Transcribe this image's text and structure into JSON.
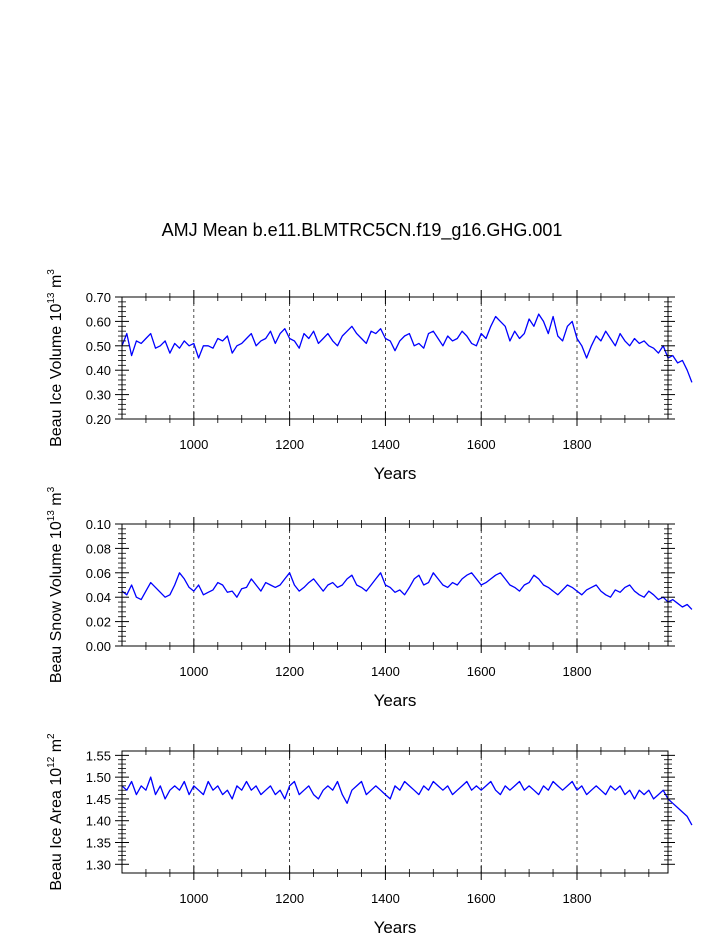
{
  "figure": {
    "title": "AMJ Mean b.e11.BLMTRC5CN.f19_g16.GHG.001"
  },
  "colors": {
    "series": "#0000ff",
    "axis": "#000000",
    "grid": "#000000"
  },
  "chart_data": [
    {
      "type": "line",
      "ylabel": "Beau Ice Volume 10",
      "ylabel_exp": "13",
      "ylabel_unit": " m",
      "ylabel_unit_exp": "3",
      "xlabel": "Years",
      "xlim": [
        850,
        1990
      ],
      "ylim": [
        0.2,
        0.7
      ],
      "xticks": [
        1000,
        1200,
        1400,
        1600,
        1800
      ],
      "xtick_labels": [
        "1000",
        "1200",
        "1400",
        "1600",
        "1800"
      ],
      "yticks": [
        0.2,
        0.3,
        0.4,
        0.5,
        0.6,
        0.7
      ],
      "ytick_labels": [
        "0.20",
        "0.30",
        "0.40",
        "0.50",
        "0.60",
        "0.70"
      ],
      "grid": "vertical dashed at labeled x ticks",
      "series": [
        {
          "x_start": 850,
          "x_step": 10,
          "values": [
            0.5,
            0.55,
            0.46,
            0.52,
            0.51,
            0.53,
            0.55,
            0.49,
            0.5,
            0.52,
            0.47,
            0.51,
            0.49,
            0.52,
            0.5,
            0.51,
            0.45,
            0.5,
            0.5,
            0.49,
            0.53,
            0.52,
            0.54,
            0.47,
            0.5,
            0.51,
            0.53,
            0.55,
            0.5,
            0.52,
            0.53,
            0.56,
            0.51,
            0.55,
            0.57,
            0.53,
            0.52,
            0.49,
            0.55,
            0.53,
            0.56,
            0.51,
            0.53,
            0.55,
            0.52,
            0.5,
            0.54,
            0.56,
            0.58,
            0.55,
            0.53,
            0.51,
            0.56,
            0.55,
            0.57,
            0.53,
            0.52,
            0.48,
            0.52,
            0.54,
            0.55,
            0.5,
            0.51,
            0.49,
            0.55,
            0.56,
            0.53,
            0.5,
            0.54,
            0.52,
            0.53,
            0.56,
            0.54,
            0.51,
            0.5,
            0.55,
            0.53,
            0.58,
            0.62,
            0.6,
            0.58,
            0.52,
            0.56,
            0.53,
            0.55,
            0.61,
            0.58,
            0.63,
            0.6,
            0.55,
            0.62,
            0.54,
            0.52,
            0.58,
            0.6,
            0.53,
            0.5,
            0.45,
            0.5,
            0.54,
            0.52,
            0.56,
            0.53,
            0.5,
            0.55,
            0.52,
            0.5,
            0.53,
            0.51,
            0.52,
            0.5,
            0.49,
            0.47,
            0.5,
            0.45,
            0.46,
            0.43,
            0.44,
            0.4,
            0.35
          ]
        }
      ]
    },
    {
      "type": "line",
      "ylabel": "Beau Snow Volume 10",
      "ylabel_exp": "13",
      "ylabel_unit": " m",
      "ylabel_unit_exp": "3",
      "xlabel": "Years",
      "xlim": [
        850,
        1990
      ],
      "ylim": [
        0,
        0.1
      ],
      "xticks": [
        1000,
        1200,
        1400,
        1600,
        1800
      ],
      "xtick_labels": [
        "1000",
        "1200",
        "1400",
        "1600",
        "1800"
      ],
      "yticks": [
        0,
        0.02,
        0.04,
        0.06,
        0.08,
        0.1
      ],
      "ytick_labels": [
        "0.00",
        "0.02",
        "0.04",
        "0.06",
        "0.08",
        "0.10"
      ],
      "grid": "vertical dashed at labeled x ticks",
      "series": [
        {
          "x_start": 850,
          "x_step": 10,
          "values": [
            0.045,
            0.042,
            0.05,
            0.04,
            0.038,
            0.045,
            0.052,
            0.048,
            0.044,
            0.04,
            0.042,
            0.05,
            0.06,
            0.055,
            0.048,
            0.045,
            0.05,
            0.042,
            0.044,
            0.046,
            0.052,
            0.05,
            0.044,
            0.045,
            0.04,
            0.047,
            0.048,
            0.055,
            0.05,
            0.045,
            0.052,
            0.05,
            0.048,
            0.05,
            0.055,
            0.06,
            0.05,
            0.045,
            0.048,
            0.052,
            0.055,
            0.05,
            0.045,
            0.05,
            0.052,
            0.048,
            0.05,
            0.055,
            0.058,
            0.05,
            0.048,
            0.045,
            0.05,
            0.055,
            0.06,
            0.05,
            0.048,
            0.044,
            0.046,
            0.042,
            0.048,
            0.055,
            0.058,
            0.05,
            0.052,
            0.06,
            0.055,
            0.05,
            0.048,
            0.052,
            0.05,
            0.055,
            0.058,
            0.06,
            0.055,
            0.05,
            0.052,
            0.055,
            0.058,
            0.06,
            0.055,
            0.05,
            0.048,
            0.045,
            0.05,
            0.052,
            0.058,
            0.055,
            0.05,
            0.048,
            0.045,
            0.042,
            0.046,
            0.05,
            0.048,
            0.045,
            0.042,
            0.046,
            0.048,
            0.05,
            0.045,
            0.042,
            0.04,
            0.046,
            0.044,
            0.048,
            0.05,
            0.045,
            0.042,
            0.04,
            0.045,
            0.042,
            0.038,
            0.04,
            0.036,
            0.038,
            0.035,
            0.032,
            0.034,
            0.03
          ]
        }
      ]
    },
    {
      "type": "line",
      "ylabel": "Beau Ice Area 10",
      "ylabel_exp": "12",
      "ylabel_unit": " m",
      "ylabel_unit_exp": "2",
      "xlabel": "Years",
      "xlim": [
        850,
        1990
      ],
      "ylim": [
        1.28,
        1.56
      ],
      "xticks": [
        1000,
        1200,
        1400,
        1600,
        1800
      ],
      "xtick_labels": [
        "1000",
        "1200",
        "1400",
        "1600",
        "1800"
      ],
      "yticks": [
        1.3,
        1.35,
        1.4,
        1.45,
        1.5,
        1.55
      ],
      "ytick_labels": [
        "1.30",
        "1.35",
        "1.40",
        "1.45",
        "1.50",
        "1.55"
      ],
      "grid": "vertical dashed at labeled x ticks",
      "series": [
        {
          "x_start": 850,
          "x_step": 10,
          "values": [
            1.48,
            1.47,
            1.49,
            1.46,
            1.48,
            1.47,
            1.5,
            1.46,
            1.48,
            1.45,
            1.47,
            1.48,
            1.47,
            1.49,
            1.46,
            1.48,
            1.47,
            1.46,
            1.49,
            1.47,
            1.48,
            1.46,
            1.47,
            1.45,
            1.48,
            1.47,
            1.49,
            1.47,
            1.48,
            1.46,
            1.47,
            1.48,
            1.46,
            1.47,
            1.45,
            1.48,
            1.49,
            1.46,
            1.47,
            1.48,
            1.46,
            1.45,
            1.47,
            1.48,
            1.47,
            1.49,
            1.46,
            1.44,
            1.47,
            1.48,
            1.49,
            1.46,
            1.47,
            1.48,
            1.47,
            1.46,
            1.45,
            1.48,
            1.47,
            1.49,
            1.48,
            1.47,
            1.46,
            1.48,
            1.47,
            1.49,
            1.48,
            1.47,
            1.48,
            1.46,
            1.47,
            1.48,
            1.49,
            1.47,
            1.48,
            1.47,
            1.48,
            1.49,
            1.47,
            1.46,
            1.48,
            1.47,
            1.48,
            1.49,
            1.47,
            1.48,
            1.47,
            1.46,
            1.48,
            1.47,
            1.49,
            1.48,
            1.47,
            1.48,
            1.49,
            1.47,
            1.48,
            1.46,
            1.47,
            1.48,
            1.47,
            1.46,
            1.48,
            1.47,
            1.48,
            1.46,
            1.47,
            1.45,
            1.47,
            1.46,
            1.47,
            1.45,
            1.46,
            1.47,
            1.45,
            1.44,
            1.43,
            1.42,
            1.41,
            1.39
          ]
        }
      ]
    }
  ]
}
